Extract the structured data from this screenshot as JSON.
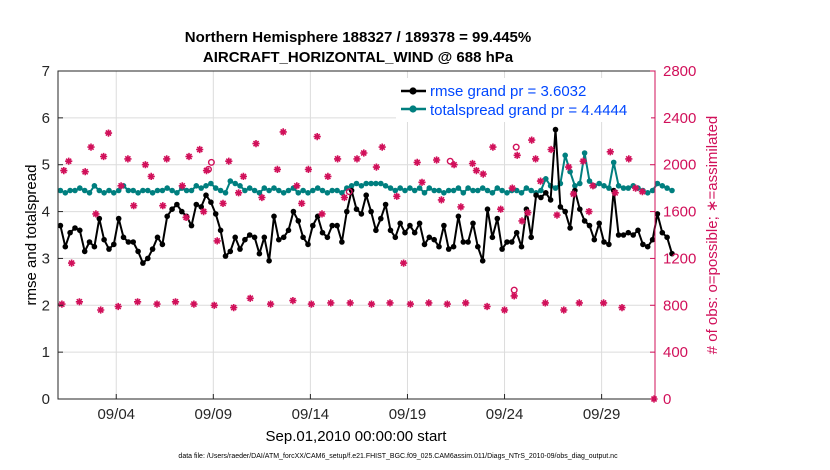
{
  "chart_data": {
    "type": "line",
    "title_line1": "Northern Hemisphere 188327 / 189378 = 99.445%",
    "title_line2": "AIRCRAFT_HORIZONTAL_WIND @ 688 hPa",
    "xlabel": "Sep.01,2010 00:00:00 start",
    "ylabel_left": "rmse and totalspread",
    "ylabel_right": "# of obs: o=possible; ∗=assimilated",
    "footer": "data file: /Users/raeder/DAI/ATM_forcXX/CAM6_setup/f.e21.FHIST_BGC.f09_025.CAM6assim.011/Diags_NTrS_2010-09/obs_diag_output.nc",
    "xlim": [
      1,
      31.75
    ],
    "x_ticks": [
      4,
      9,
      14,
      19,
      24,
      29
    ],
    "x_tick_labels": [
      "09/04",
      "09/09",
      "09/14",
      "09/19",
      "09/24",
      "09/29"
    ],
    "ylim_left": [
      0,
      7
    ],
    "y_ticks_left": [
      "0",
      "1",
      "2",
      "3",
      "4",
      "5",
      "6",
      "7"
    ],
    "ylim_right": [
      0,
      2800
    ],
    "y_ticks_right": [
      "0",
      "400",
      "800",
      "1200",
      "1600",
      "2000",
      "2400",
      "2800"
    ],
    "colors": {
      "rmse": "#000000",
      "spread": "#007f7f",
      "obs": "#d1105a",
      "legend_text": "#0047ff",
      "right_axis": "#d1105a"
    },
    "x_start": 1.125,
    "x_step": 0.25,
    "series": [
      {
        "name": "rmse grand pr = 3.6032",
        "axis": "left",
        "values": [
          3.7,
          3.25,
          3.55,
          3.65,
          3.6,
          3.15,
          3.35,
          3.25,
          3.85,
          3.4,
          3.2,
          3.3,
          3.85,
          3.45,
          3.35,
          3.35,
          3.15,
          2.9,
          3.0,
          3.2,
          3.45,
          3.3,
          3.9,
          4.05,
          4.15,
          4.0,
          3.9,
          3.7,
          4.15,
          4.1,
          4.35,
          4.2,
          3.95,
          3.6,
          3.05,
          3.15,
          3.45,
          3.2,
          3.4,
          3.5,
          3.45,
          3.1,
          3.45,
          2.95,
          3.9,
          3.4,
          3.45,
          3.6,
          4.0,
          3.8,
          3.45,
          3.3,
          3.7,
          3.9,
          3.55,
          3.45,
          3.7,
          3.7,
          3.35,
          4.0,
          4.45,
          4.05,
          3.95,
          4.35,
          4.0,
          3.6,
          3.85,
          4.15,
          3.6,
          3.45,
          3.75,
          3.55,
          3.7,
          3.55,
          3.75,
          3.3,
          3.45,
          3.4,
          3.25,
          3.7,
          3.2,
          3.25,
          3.9,
          3.35,
          3.35,
          3.75,
          3.25,
          2.95,
          4.05,
          3.45,
          3.85,
          3.2,
          3.35,
          3.35,
          3.55,
          3.25,
          4.05,
          3.45,
          4.35,
          4.3,
          4.4,
          4.25,
          5.75,
          4.1,
          4.0,
          3.65,
          4.45,
          4.05,
          3.8,
          3.7,
          3.4,
          3.75,
          3.35,
          3.3,
          4.45,
          3.5,
          3.5,
          3.55,
          3.5,
          3.6,
          3.3,
          3.25,
          3.4,
          3.95,
          3.55,
          3.45,
          3.1
        ]
      },
      {
        "name": "totalspread grand pr = 4.4444",
        "axis": "left",
        "values": [
          4.45,
          4.4,
          4.45,
          4.45,
          4.5,
          4.45,
          4.4,
          4.55,
          4.45,
          4.4,
          4.45,
          4.4,
          4.45,
          4.55,
          4.45,
          4.45,
          4.4,
          4.45,
          4.45,
          4.4,
          4.45,
          4.45,
          4.5,
          4.45,
          4.4,
          4.5,
          4.45,
          4.45,
          4.55,
          4.5,
          4.55,
          4.6,
          4.5,
          4.45,
          4.4,
          4.65,
          4.6,
          4.55,
          4.45,
          4.5,
          4.45,
          4.4,
          4.5,
          4.45,
          4.5,
          4.45,
          4.4,
          4.45,
          4.5,
          4.4,
          4.45,
          4.4,
          4.45,
          4.5,
          4.45,
          4.4,
          4.45,
          4.45,
          4.4,
          4.5,
          4.55,
          4.6,
          4.55,
          4.6,
          4.6,
          4.6,
          4.6,
          4.55,
          4.5,
          4.45,
          4.5,
          4.45,
          4.5,
          4.45,
          4.5,
          4.4,
          4.5,
          4.45,
          4.45,
          4.4,
          4.45,
          4.45,
          4.5,
          4.4,
          4.5,
          4.45,
          4.45,
          4.5,
          4.45,
          4.4,
          4.5,
          4.45,
          4.4,
          4.45,
          4.45,
          4.4,
          4.5,
          4.45,
          4.4,
          4.45,
          4.7,
          4.55,
          4.5,
          4.6,
          5.2,
          4.85,
          4.55,
          4.6,
          5.25,
          4.65,
          4.55,
          4.6,
          4.55,
          4.5,
          5.05,
          4.55,
          4.5,
          4.5,
          4.55,
          4.5,
          4.45,
          4.4,
          4.45,
          4.6,
          4.55,
          4.5,
          4.45
        ]
      }
    ],
    "obs_possible": {
      "name": "o=possible",
      "axis": "right",
      "points": [
        [
          8.9,
          2020
        ],
        [
          8.75,
          1960
        ],
        [
          16.0,
          1770
        ],
        [
          21.2,
          2030
        ],
        [
          24.6,
          2150
        ],
        [
          24.5,
          930
        ]
      ]
    },
    "obs_assimilated": {
      "name": "∗=assimilated",
      "axis": "right",
      "points": [
        [
          1.2,
          810
        ],
        [
          1.3,
          1950
        ],
        [
          1.55,
          2030
        ],
        [
          1.7,
          1160
        ],
        [
          2.1,
          830
        ],
        [
          2.4,
          1940
        ],
        [
          2.7,
          2150
        ],
        [
          2.95,
          1580
        ],
        [
          3.2,
          760
        ],
        [
          3.35,
          2070
        ],
        [
          3.6,
          2270
        ],
        [
          4.1,
          790
        ],
        [
          4.25,
          1820
        ],
        [
          4.6,
          2050
        ],
        [
          4.9,
          1650
        ],
        [
          5.1,
          830
        ],
        [
          5.5,
          2000
        ],
        [
          5.8,
          1900
        ],
        [
          6.1,
          810
        ],
        [
          6.4,
          1650
        ],
        [
          6.6,
          2050
        ],
        [
          7.05,
          830
        ],
        [
          7.4,
          1820
        ],
        [
          7.6,
          1550
        ],
        [
          7.75,
          2070
        ],
        [
          8.0,
          810
        ],
        [
          8.3,
          2130
        ],
        [
          8.5,
          1600
        ],
        [
          8.65,
          1950
        ],
        [
          9.05,
          800
        ],
        [
          9.2,
          1350
        ],
        [
          9.5,
          1670
        ],
        [
          9.8,
          2030
        ],
        [
          10.05,
          780
        ],
        [
          10.3,
          1760
        ],
        [
          10.55,
          1900
        ],
        [
          10.9,
          860
        ],
        [
          11.2,
          2180
        ],
        [
          11.5,
          1720
        ],
        [
          11.95,
          810
        ],
        [
          12.3,
          1960
        ],
        [
          12.6,
          2280
        ],
        [
          13.1,
          840
        ],
        [
          13.3,
          1820
        ],
        [
          13.55,
          1670
        ],
        [
          13.9,
          1960
        ],
        [
          14.05,
          810
        ],
        [
          14.35,
          2240
        ],
        [
          14.6,
          1580
        ],
        [
          14.9,
          1900
        ],
        [
          15.05,
          820
        ],
        [
          15.4,
          2050
        ],
        [
          15.75,
          1720
        ],
        [
          16.05,
          820
        ],
        [
          16.4,
          2050
        ],
        [
          16.75,
          2100
        ],
        [
          17.15,
          810
        ],
        [
          17.4,
          1980
        ],
        [
          17.7,
          2150
        ],
        [
          18.1,
          820
        ],
        [
          18.45,
          1730
        ],
        [
          18.8,
          1160
        ],
        [
          19.15,
          810
        ],
        [
          19.5,
          2020
        ],
        [
          19.75,
          1850
        ],
        [
          20.1,
          820
        ],
        [
          20.5,
          2040
        ],
        [
          20.75,
          1700
        ],
        [
          21.05,
          810
        ],
        [
          21.4,
          2000
        ],
        [
          21.75,
          1640
        ],
        [
          22.0,
          820
        ],
        [
          22.35,
          2010
        ],
        [
          22.55,
          1950
        ],
        [
          22.9,
          1920
        ],
        [
          23.1,
          790
        ],
        [
          23.4,
          2150
        ],
        [
          23.8,
          1620
        ],
        [
          24.0,
          760
        ],
        [
          24.4,
          1800
        ],
        [
          24.5,
          880
        ],
        [
          24.65,
          2080
        ],
        [
          24.9,
          1520
        ],
        [
          25.2,
          1590
        ],
        [
          25.4,
          2210
        ],
        [
          25.6,
          2050
        ],
        [
          25.85,
          1860
        ],
        [
          26.1,
          820
        ],
        [
          26.4,
          2130
        ],
        [
          26.7,
          1570
        ],
        [
          27.05,
          760
        ],
        [
          27.3,
          1980
        ],
        [
          27.55,
          1750
        ],
        [
          27.85,
          820
        ],
        [
          28.05,
          2030
        ],
        [
          28.35,
          1600
        ],
        [
          28.55,
          1820
        ],
        [
          29.1,
          820
        ],
        [
          29.45,
          2110
        ],
        [
          29.7,
          1760
        ],
        [
          30.05,
          780
        ],
        [
          30.4,
          2050
        ],
        [
          30.75,
          1800
        ],
        [
          31.1,
          1770
        ],
        [
          31.7,
          0
        ]
      ]
    }
  }
}
